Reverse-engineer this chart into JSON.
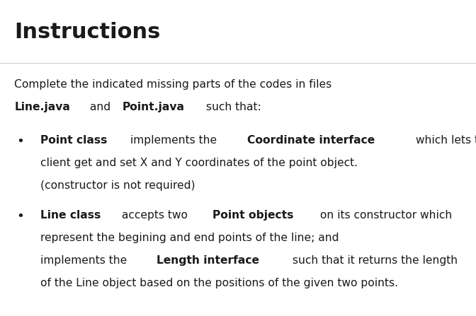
{
  "title": "Instructions",
  "bg_color": "#ffffff",
  "title_color": "#1a1a1a",
  "body_color": "#1a1a1a",
  "title_fontsize": 22,
  "body_fontsize": 11.2,
  "line1": "Complete the indicated missing parts of the codes in files",
  "line2_parts": [
    {
      "text": "Line.java",
      "bold": true
    },
    {
      "text": " and ",
      "bold": false
    },
    {
      "text": "Point.java",
      "bold": true
    },
    {
      "text": " such that:",
      "bold": false
    }
  ],
  "bullet1_parts": [
    [
      {
        "text": "Point class",
        "bold": true
      },
      {
        "text": " implements the ",
        "bold": false
      },
      {
        "text": "Coordinate interface",
        "bold": true
      },
      {
        "text": " which lets the",
        "bold": false
      }
    ],
    [
      {
        "text": "client get and set X and Y coordinates of the point object.",
        "bold": false
      }
    ],
    [
      {
        "text": "(constructor is not required)",
        "bold": false
      }
    ]
  ],
  "bullet2_parts": [
    [
      {
        "text": "Line class",
        "bold": true
      },
      {
        "text": " accepts two ",
        "bold": false
      },
      {
        "text": "Point objects",
        "bold": true
      },
      {
        "text": " on its constructor which",
        "bold": false
      }
    ],
    [
      {
        "text": "represent the begining and end points of the line; and",
        "bold": false
      }
    ],
    [
      {
        "text": "implements the ",
        "bold": false
      },
      {
        "text": "Length interface",
        "bold": true
      },
      {
        "text": " such that it returns the length",
        "bold": false
      }
    ],
    [
      {
        "text": "of the Line object based on the positions of the given two points.",
        "bold": false
      }
    ]
  ],
  "separator_color": "#cccccc",
  "page_bg": "#f0f0f0"
}
